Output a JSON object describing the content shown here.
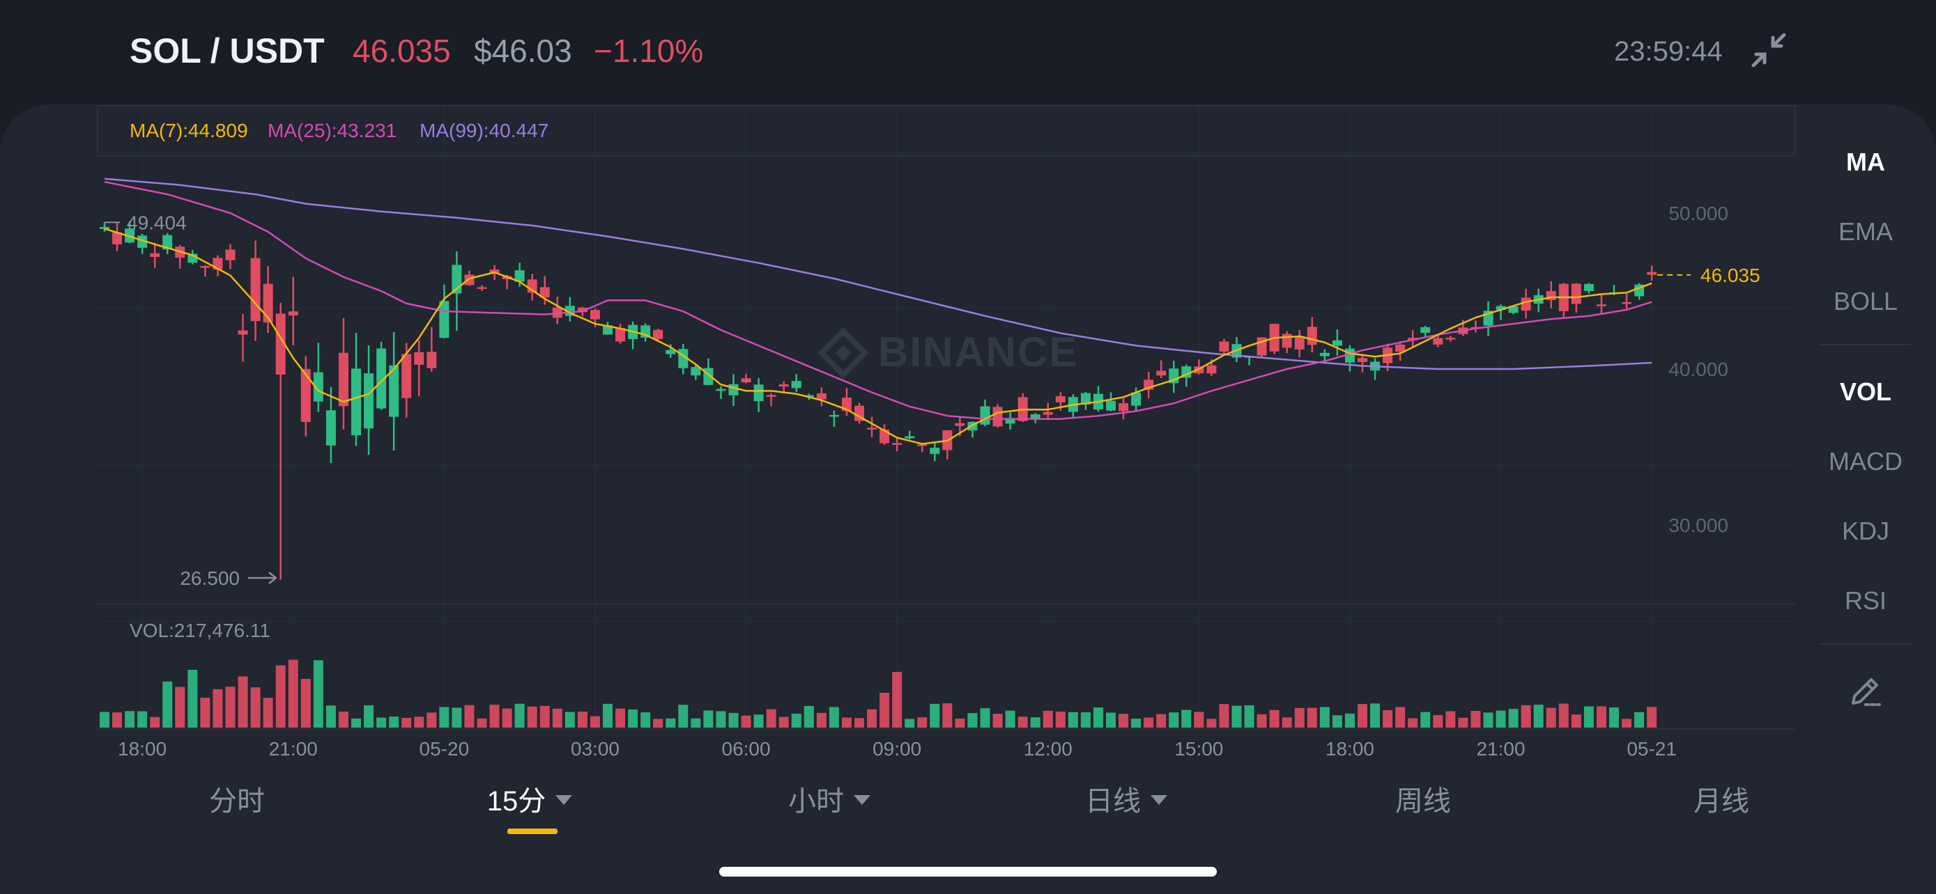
{
  "header": {
    "pair": "SOL / USDT",
    "last_price": "46.035",
    "usd_price": "$46.03",
    "change_pct": "−1.10%",
    "time": "23:59:44"
  },
  "indicators": {
    "ma7_label": "MA(7):44.809",
    "ma25_label": "MA(25):43.231",
    "ma99_label": "MA(99):40.447",
    "vol_label": "VOL:217,476.11",
    "high_marker": "49.404",
    "low_marker": "26.500",
    "last_price_tag": "46.035",
    "watermark": "BINANCE"
  },
  "right_menu": {
    "main": [
      "MA",
      "EMA",
      "BOLL"
    ],
    "sub": [
      "VOL",
      "MACD",
      "KDJ",
      "RSI"
    ],
    "active_main": "MA",
    "active_sub": "VOL",
    "draw_icon": "pencil-icon"
  },
  "bottom_tabs": {
    "items": [
      "分时",
      "15分",
      "小时",
      "日线",
      "周线",
      "月线"
    ],
    "active": "15分"
  },
  "colors": {
    "up": "#2ebd85",
    "down": "#e04d62",
    "ma7": "#f0b90b",
    "ma25": "#d64ab5",
    "ma99": "#9b7ee0",
    "accent": "#f0b90b",
    "background": "#212630"
  },
  "chart_data": {
    "type": "candlestick",
    "symbol": "SOL/USDT",
    "interval": "15分",
    "ylim": [
      25.3,
      52.2
    ],
    "y_ticks": [
      {
        "value": 50,
        "label": "50.000"
      },
      {
        "value": 40,
        "label": "40.000"
      },
      {
        "value": 30,
        "label": "30.000"
      }
    ],
    "x_ticks": [
      "18:00",
      "21:00",
      "05-20",
      "03:00",
      "06:00",
      "09:00",
      "12:00",
      "15:00",
      "18:00",
      "21:00",
      "05-21"
    ],
    "x_tick_candle_index": [
      3,
      15,
      27,
      39,
      51,
      63,
      75,
      87,
      99,
      111,
      123
    ],
    "high": 49.404,
    "low": 26.5,
    "last": 46.035,
    "ma7": 44.809,
    "ma25": 43.231,
    "ma99": 40.447,
    "volume_total": 217476.11,
    "ma_series": {
      "ma7": [
        [
          0,
          49.0
        ],
        [
          4,
          48.0
        ],
        [
          7,
          47.3
        ],
        [
          10,
          46.0
        ],
        [
          13,
          43.3
        ],
        [
          15,
          40.7
        ],
        [
          17,
          38.6
        ],
        [
          19,
          37.9
        ],
        [
          21,
          38.4
        ],
        [
          23,
          40.0
        ],
        [
          25,
          42.0
        ],
        [
          27,
          44.5
        ],
        [
          29,
          45.8
        ],
        [
          31,
          46.2
        ],
        [
          33,
          45.6
        ],
        [
          35,
          44.5
        ],
        [
          37,
          43.6
        ],
        [
          39,
          42.9
        ],
        [
          41,
          42.6
        ],
        [
          43,
          42.2
        ],
        [
          45,
          41.4
        ],
        [
          47,
          40.3
        ],
        [
          49,
          39.0
        ],
        [
          51,
          38.6
        ],
        [
          53,
          38.6
        ],
        [
          55,
          38.4
        ],
        [
          57,
          38.0
        ],
        [
          59,
          37.4
        ],
        [
          61,
          36.5
        ],
        [
          63,
          35.6
        ],
        [
          65,
          35.2
        ],
        [
          67,
          35.4
        ],
        [
          69,
          36.4
        ],
        [
          71,
          37.2
        ],
        [
          73,
          37.4
        ],
        [
          75,
          37.4
        ],
        [
          77,
          37.7
        ],
        [
          79,
          37.9
        ],
        [
          81,
          38.2
        ],
        [
          83,
          38.8
        ],
        [
          85,
          39.3
        ],
        [
          87,
          40.0
        ],
        [
          89,
          40.9
        ],
        [
          91,
          41.5
        ],
        [
          93,
          42.0
        ],
        [
          95,
          42.1
        ],
        [
          97,
          41.7
        ],
        [
          99,
          41.0
        ],
        [
          101,
          40.8
        ],
        [
          103,
          41.0
        ],
        [
          105,
          41.8
        ],
        [
          107,
          42.6
        ],
        [
          109,
          43.3
        ],
        [
          111,
          43.8
        ],
        [
          113,
          44.3
        ],
        [
          115,
          44.6
        ],
        [
          117,
          44.6
        ],
        [
          119,
          44.8
        ],
        [
          121,
          44.9
        ],
        [
          123,
          45.5
        ]
      ],
      "ma25": [
        [
          0,
          52.0
        ],
        [
          5,
          51.2
        ],
        [
          10,
          50.0
        ],
        [
          13,
          48.8
        ],
        [
          16,
          47.1
        ],
        [
          19,
          45.9
        ],
        [
          22,
          45.0
        ],
        [
          24,
          44.2
        ],
        [
          27,
          43.7
        ],
        [
          31,
          43.6
        ],
        [
          35,
          43.5
        ],
        [
          38,
          43.7
        ],
        [
          40,
          44.4
        ],
        [
          43,
          44.4
        ],
        [
          46,
          43.7
        ],
        [
          49,
          42.5
        ],
        [
          52,
          41.5
        ],
        [
          55,
          40.5
        ],
        [
          58,
          39.5
        ],
        [
          61,
          38.5
        ],
        [
          64,
          37.6
        ],
        [
          67,
          37.0
        ],
        [
          70,
          36.8
        ],
        [
          73,
          36.8
        ],
        [
          76,
          36.8
        ],
        [
          79,
          37.0
        ],
        [
          82,
          37.3
        ],
        [
          85,
          37.8
        ],
        [
          88,
          38.6
        ],
        [
          91,
          39.3
        ],
        [
          94,
          40.0
        ],
        [
          97,
          40.5
        ],
        [
          100,
          41.2
        ],
        [
          103,
          41.7
        ],
        [
          106,
          42.2
        ],
        [
          109,
          42.6
        ],
        [
          112,
          42.9
        ],
        [
          115,
          43.2
        ],
        [
          118,
          43.4
        ],
        [
          121,
          43.8
        ],
        [
          123,
          44.3
        ]
      ],
      "ma99": [
        [
          0,
          52.2
        ],
        [
          6,
          51.8
        ],
        [
          12,
          51.2
        ],
        [
          16,
          50.6
        ],
        [
          22,
          50.1
        ],
        [
          28,
          49.7
        ],
        [
          34,
          49.2
        ],
        [
          40,
          48.5
        ],
        [
          46,
          47.7
        ],
        [
          52,
          46.8
        ],
        [
          58,
          45.8
        ],
        [
          64,
          44.6
        ],
        [
          70,
          43.4
        ],
        [
          76,
          42.3
        ],
        [
          82,
          41.5
        ],
        [
          88,
          41.0
        ],
        [
          94,
          40.6
        ],
        [
          100,
          40.2
        ],
        [
          106,
          40.0
        ],
        [
          112,
          40.0
        ],
        [
          118,
          40.2
        ],
        [
          123,
          40.4
        ]
      ]
    }
  }
}
